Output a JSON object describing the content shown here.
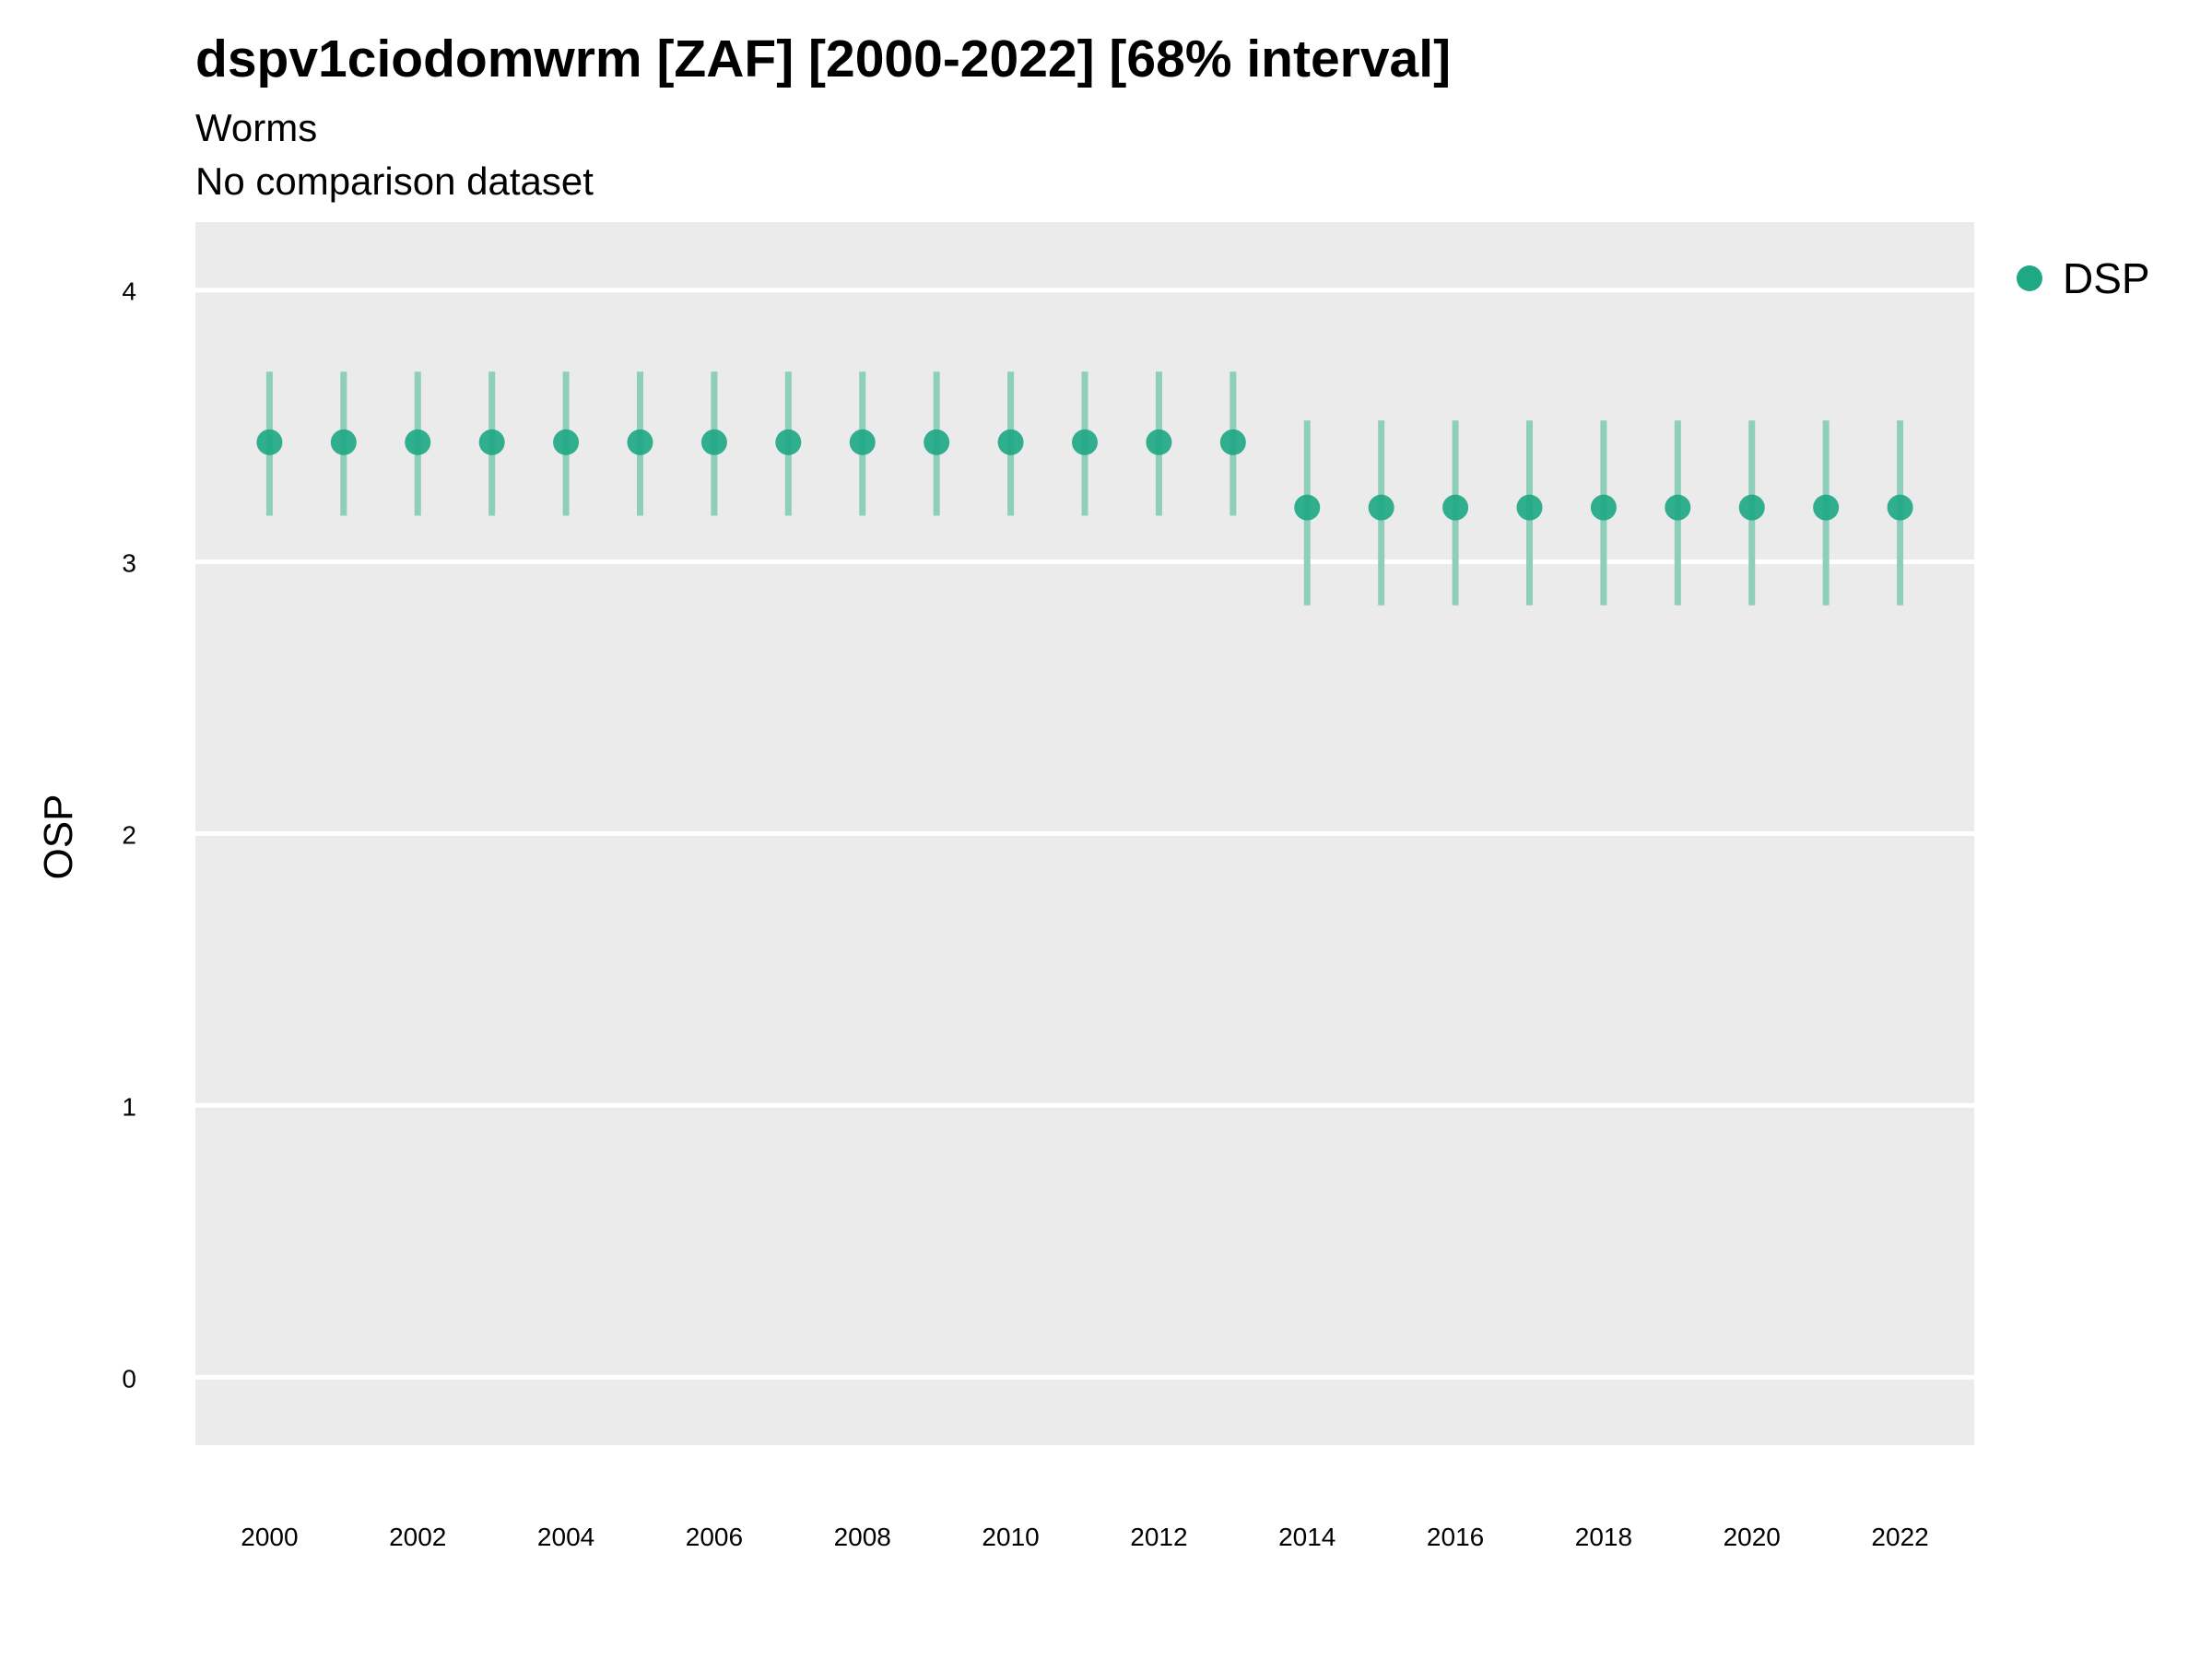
{
  "chart_data": {
    "type": "scatter",
    "title": "dspv1ciodomwrm [ZAF] [2000-2022] [68% interval]",
    "subtitle": "Worms",
    "caption": "No comparison dataset",
    "xlabel": "",
    "ylabel": "OSP",
    "xlim": [
      1999,
      2023
    ],
    "ylim": [
      -0.25,
      4.25
    ],
    "x_ticks": [
      2000,
      2002,
      2004,
      2006,
      2008,
      2010,
      2012,
      2014,
      2016,
      2018,
      2020,
      2022
    ],
    "y_ticks": [
      0,
      1,
      2,
      3,
      4
    ],
    "grid": true,
    "legend_position": "right",
    "series": [
      {
        "name": "DSP",
        "color": "#1fa884",
        "x": [
          2000,
          2001,
          2002,
          2003,
          2004,
          2005,
          2006,
          2007,
          2008,
          2009,
          2010,
          2011,
          2012,
          2013,
          2014,
          2015,
          2016,
          2017,
          2018,
          2019,
          2020,
          2021,
          2022
        ],
        "y": [
          3.44,
          3.44,
          3.44,
          3.44,
          3.44,
          3.44,
          3.44,
          3.44,
          3.44,
          3.44,
          3.44,
          3.44,
          3.44,
          3.44,
          3.2,
          3.2,
          3.2,
          3.2,
          3.2,
          3.2,
          3.2,
          3.2,
          3.2
        ],
        "lower": [
          3.17,
          3.17,
          3.17,
          3.17,
          3.17,
          3.17,
          3.17,
          3.17,
          3.17,
          3.17,
          3.17,
          3.17,
          3.17,
          3.17,
          2.84,
          2.84,
          2.84,
          2.84,
          2.84,
          2.84,
          2.84,
          2.84,
          2.84
        ],
        "upper": [
          3.7,
          3.7,
          3.7,
          3.7,
          3.7,
          3.7,
          3.7,
          3.7,
          3.7,
          3.7,
          3.7,
          3.7,
          3.7,
          3.7,
          3.52,
          3.52,
          3.52,
          3.52,
          3.52,
          3.52,
          3.52,
          3.52,
          3.52
        ]
      }
    ],
    "colors": {
      "panel_background": "#ebebeb",
      "gridline": "#ffffff",
      "point": "#1fa884",
      "interval": "#8dcfba"
    }
  }
}
